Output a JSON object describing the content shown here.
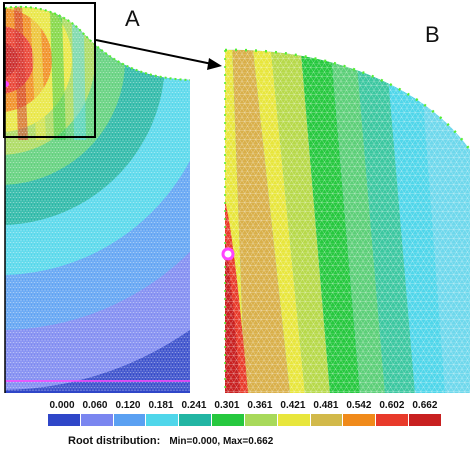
{
  "panels": {
    "a_label": "A",
    "b_label": "B"
  },
  "legend": {
    "title": "Root distribution:",
    "range_text": "Min=0.000, Max=0.662",
    "ticks": [
      "0.000",
      "0.060",
      "0.120",
      "0.181",
      "0.241",
      "0.301",
      "0.361",
      "0.421",
      "0.481",
      "0.542",
      "0.602",
      "0.662"
    ],
    "colors": [
      "#2f46c8",
      "#7a86f0",
      "#5aa0f2",
      "#4fd6ea",
      "#22b5a3",
      "#26c83e",
      "#a8d95a",
      "#e8e63c",
      "#d2b94a",
      "#f08a1a",
      "#e83a2a",
      "#c82020"
    ]
  },
  "colors": {
    "mesh_line": "#ffffff",
    "boundary_node": "#55ee33",
    "root_node": "#ff44ff",
    "zoom_box": "#000000"
  }
}
